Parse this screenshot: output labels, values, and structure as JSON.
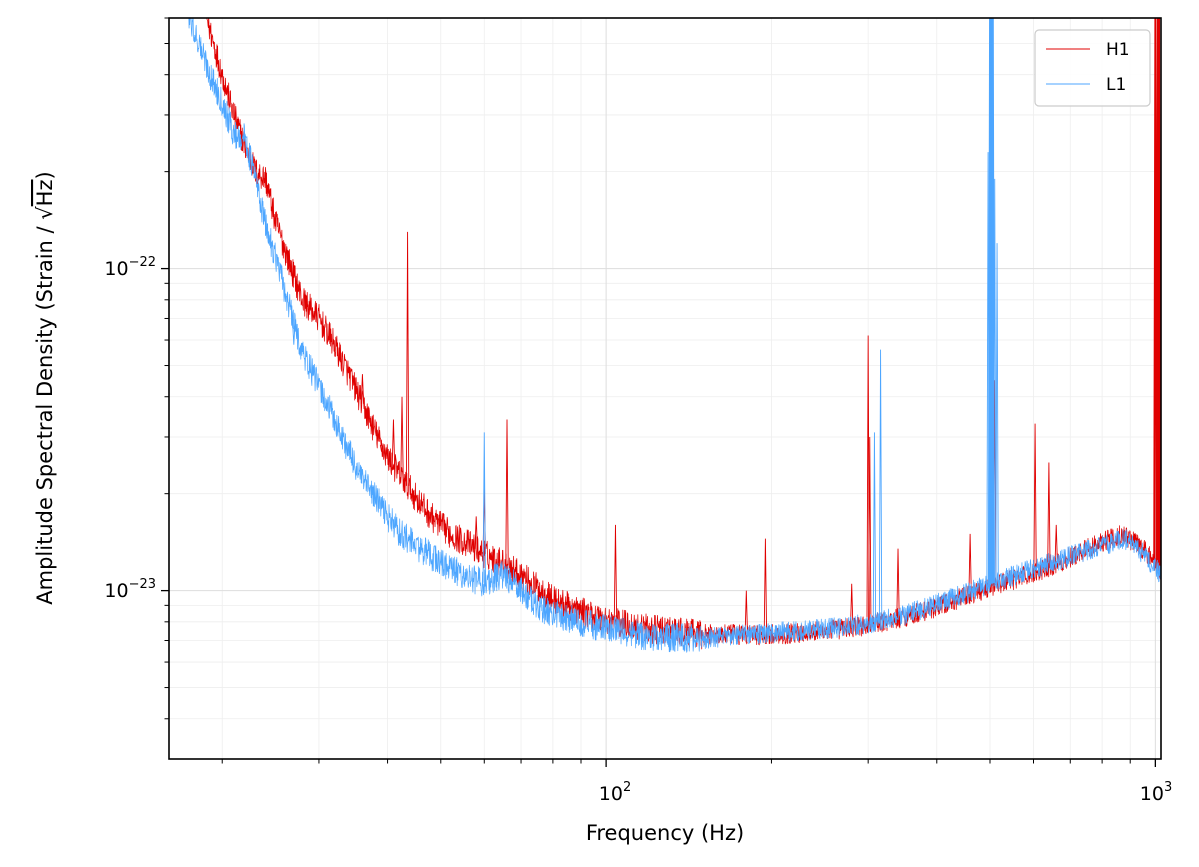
{
  "chart_data": {
    "type": "line",
    "title": "",
    "xlabel": "Frequency (Hz)",
    "ylabel_main": "Amplitude Spectral Density (Strain / ",
    "ylabel_sqrt": "√",
    "ylabel_hz": "Hz",
    "ylabel_close": ")",
    "xscale": "log",
    "yscale": "log",
    "xlim": [
      16,
      1024
    ],
    "ylim": [
      3e-24,
      6e-22
    ],
    "grid": true,
    "legend_position": "top-right",
    "x_ticks": [
      {
        "value": 100,
        "base": "10",
        "exp": "2"
      },
      {
        "value": 1000,
        "base": "10",
        "exp": "3"
      }
    ],
    "y_ticks": [
      {
        "value": 1e-23,
        "base": "10",
        "exp": "−23"
      },
      {
        "value": 1e-22,
        "base": "10",
        "exp": "−22"
      }
    ],
    "series": [
      {
        "name": "H1",
        "color": "#e00000",
        "base_points": [
          [
            16,
            1.2e-21
          ],
          [
            18,
            8e-22
          ],
          [
            19,
            5.5e-22
          ],
          [
            20,
            4e-22
          ],
          [
            21,
            3e-22
          ],
          [
            22,
            2.4e-22
          ],
          [
            23,
            2e-22
          ],
          [
            24,
            1.9e-22
          ],
          [
            25,
            1.4e-22
          ],
          [
            26,
            1.15e-22
          ],
          [
            27,
            9.5e-23
          ],
          [
            28,
            8e-23
          ],
          [
            30,
            7e-23
          ],
          [
            32,
            5.8e-23
          ],
          [
            34,
            4.7e-23
          ],
          [
            36,
            3.8e-23
          ],
          [
            38,
            3.1e-23
          ],
          [
            40,
            2.6e-23
          ],
          [
            42,
            2.3e-23
          ],
          [
            45,
            1.95e-23
          ],
          [
            48,
            1.7e-23
          ],
          [
            52,
            1.5e-23
          ],
          [
            56,
            1.4e-23
          ],
          [
            60,
            1.3e-23
          ],
          [
            65,
            1.22e-23
          ],
          [
            70,
            1.12e-23
          ],
          [
            75,
            1.02e-23
          ],
          [
            80,
            9.4e-24
          ],
          [
            90,
            8.6e-24
          ],
          [
            100,
            8.1e-24
          ],
          [
            120,
            7.6e-24
          ],
          [
            150,
            7.3e-24
          ],
          [
            200,
            7.3e-24
          ],
          [
            250,
            7.5e-24
          ],
          [
            300,
            7.8e-24
          ],
          [
            350,
            8.3e-24
          ],
          [
            400,
            8.9e-24
          ],
          [
            450,
            9.6e-24
          ],
          [
            500,
            1.03e-23
          ],
          [
            600,
            1.13e-23
          ],
          [
            700,
            1.27e-23
          ],
          [
            800,
            1.42e-23
          ],
          [
            870,
            1.5e-23
          ],
          [
            950,
            1.35e-23
          ],
          [
            1024,
            1.15e-23
          ]
        ],
        "lines": [
          [
            43.5,
            1.3e-22
          ],
          [
            36,
            4.7e-23
          ],
          [
            41,
            3.4e-23
          ],
          [
            42.5,
            4e-23
          ],
          [
            39,
            2.7e-23
          ],
          [
            60,
            2.1e-23
          ],
          [
            58,
            1.7e-23
          ],
          [
            66,
            3.4e-23
          ],
          [
            104,
            1.6e-23
          ],
          [
            180,
            1e-23
          ],
          [
            195,
            1.45e-23
          ],
          [
            280,
            1.05e-23
          ],
          [
            300,
            6.2e-23
          ],
          [
            302,
            3e-23
          ],
          [
            340,
            1.35e-23
          ],
          [
            460,
            1.5e-23
          ],
          [
            500,
            7.6e-23
          ],
          [
            510,
            4.5e-23
          ],
          [
            604,
            3.3e-23
          ],
          [
            640,
            2.5e-23
          ],
          [
            660,
            1.6e-23
          ],
          [
            1000,
            7e-22
          ],
          [
            1010,
            7e-22
          ],
          [
            1016,
            7e-22
          ]
        ]
      },
      {
        "name": "L1",
        "color": "#4da6ff",
        "base_points": [
          [
            16,
            9e-22
          ],
          [
            18,
            5.2e-22
          ],
          [
            19,
            4e-22
          ],
          [
            20,
            3.3e-22
          ],
          [
            21,
            2.6e-22
          ],
          [
            22,
            2.55e-22
          ],
          [
            23,
            1.9e-22
          ],
          [
            24,
            1.35e-22
          ],
          [
            25,
            1.1e-22
          ],
          [
            26,
            8.5e-23
          ],
          [
            27,
            6.8e-23
          ],
          [
            28,
            5.5e-23
          ],
          [
            30,
            4.3e-23
          ],
          [
            32,
            3.4e-23
          ],
          [
            34,
            2.7e-23
          ],
          [
            36,
            2.2e-23
          ],
          [
            38,
            1.95e-23
          ],
          [
            40,
            1.7e-23
          ],
          [
            42,
            1.52e-23
          ],
          [
            45,
            1.38e-23
          ],
          [
            48,
            1.28e-23
          ],
          [
            52,
            1.17e-23
          ],
          [
            56,
            1.1e-23
          ],
          [
            60,
            1.06e-23
          ],
          [
            65,
            1.12e-23
          ],
          [
            70,
            1e-23
          ],
          [
            75,
            8.9e-24
          ],
          [
            80,
            8.5e-24
          ],
          [
            90,
            8e-24
          ],
          [
            100,
            7.6e-24
          ],
          [
            120,
            7.2e-24
          ],
          [
            150,
            7.1e-24
          ],
          [
            200,
            7.4e-24
          ],
          [
            250,
            7.6e-24
          ],
          [
            300,
            7.9e-24
          ],
          [
            350,
            8.4e-24
          ],
          [
            400,
            9.1e-24
          ],
          [
            450,
            9.8e-24
          ],
          [
            500,
            1.05e-23
          ],
          [
            600,
            1.17e-23
          ],
          [
            700,
            1.28e-23
          ],
          [
            800,
            1.38e-23
          ],
          [
            880,
            1.45e-23
          ],
          [
            950,
            1.3e-23
          ],
          [
            1024,
            1.12e-23
          ]
        ],
        "lines": [
          [
            22,
            2.6e-22
          ],
          [
            27,
            5.8e-23
          ],
          [
            60,
            3.1e-23
          ],
          [
            308,
            3.1e-23
          ],
          [
            316,
            5.6e-23
          ],
          [
            496,
            2.3e-22
          ],
          [
            500,
            7e-22
          ],
          [
            502,
            7e-22
          ],
          [
            504,
            7e-22
          ],
          [
            506,
            7e-22
          ],
          [
            510,
            1.9e-22
          ],
          [
            515,
            1.2e-22
          ]
        ]
      }
    ]
  }
}
